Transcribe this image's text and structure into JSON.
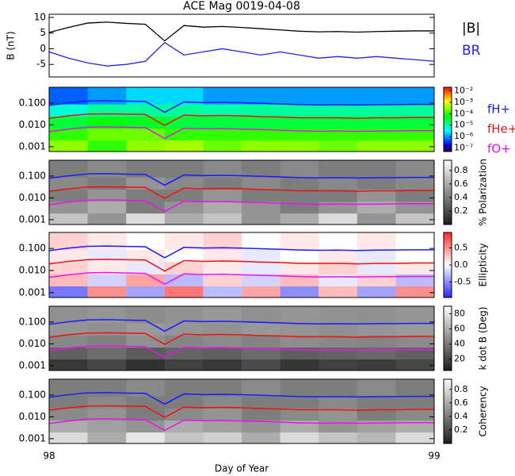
{
  "chart_data": [
    {
      "type": "line",
      "title": "ACE Mag 0019-04-08",
      "ylabel": "B (nT)",
      "ylim": [
        -9,
        11
      ],
      "yticks": [
        -5,
        0,
        5,
        10
      ],
      "x": [
        98,
        98.05,
        98.1,
        98.15,
        98.2,
        98.25,
        98.3,
        98.35,
        98.4,
        98.45,
        98.5,
        98.55,
        98.6,
        98.65,
        98.7,
        98.75,
        98.8,
        98.85,
        98.9,
        98.95,
        99
      ],
      "series": [
        {
          "name": "|B|",
          "color": "#000000",
          "values": [
            5.2,
            6.8,
            8.2,
            8.5,
            8.1,
            7.8,
            2.5,
            7.4,
            6.9,
            7.1,
            6.8,
            6.4,
            6.0,
            5.6,
            5.4,
            5.5,
            5.3,
            5.5,
            5.6,
            5.7,
            5.7
          ]
        },
        {
          "name": "BR",
          "color": "#2222ee",
          "values": [
            -1,
            -3,
            -4.5,
            -5.5,
            -5,
            -4,
            2,
            -2,
            -1,
            0,
            -1,
            -2,
            -1,
            -2,
            -3,
            -2.5,
            -3,
            -2.5,
            -3,
            -3.5,
            -4
          ]
        }
      ]
    },
    {
      "type": "heatmap",
      "colormap": "rainbow",
      "zlog": true,
      "zlim": [
        5e-08,
        0.02
      ],
      "zticks": [
        {
          "value": 1e-07,
          "label": "10⁻⁷"
        },
        {
          "value": 1e-06,
          "label": "10⁻⁶"
        },
        {
          "value": 1e-05,
          "label": "10⁻⁵"
        },
        {
          "value": 0.0001,
          "label": "10⁻⁴"
        },
        {
          "value": 0.001,
          "label": "10⁻³"
        },
        {
          "value": 0.01,
          "label": "10⁻²"
        }
      ],
      "ylog": true,
      "ylim": [
        0.0006,
        0.53
      ],
      "yticks": [
        0.001,
        {
          "value": 0.01,
          "label": "0.010"
        },
        {
          "value": 0.1,
          "label": "0.100"
        }
      ],
      "xbins": [
        98,
        98.1,
        98.2,
        98.3,
        98.4,
        98.5,
        98.6,
        98.7,
        98.8,
        98.9,
        99
      ],
      "ybins": [
        0.0006,
        0.002,
        0.007,
        0.025,
        0.09,
        0.53
      ],
      "z": [
        [
          0.0003,
          0.0001,
          0.0003,
          0.0004,
          0.0002,
          0.0003,
          0.0003,
          0.0002,
          0.0003,
          0.0003
        ],
        [
          0.0001,
          0.0002,
          0.0002,
          0.0001,
          0.0001,
          0.0001,
          0.0001,
          0.0001,
          0.0001,
          0.0001
        ],
        [
          3e-05,
          5e-05,
          4e-05,
          3e-05,
          3e-05,
          3e-05,
          3e-05,
          3e-05,
          3e-05,
          3e-05
        ],
        [
          5e-06,
          1e-05,
          1e-05,
          1e-05,
          8e-06,
          1e-05,
          1e-05,
          1e-05,
          1e-05,
          1e-05
        ],
        [
          5e-07,
          1e-06,
          2e-06,
          2e-06,
          1e-06,
          1e-06,
          1e-06,
          1e-06,
          1e-06,
          1e-06
        ]
      ],
      "series": [
        {
          "name": "fH+",
          "color": "#1a1aff",
          "values": [
            0.079,
            0.103,
            0.125,
            0.129,
            0.123,
            0.119,
            0.038,
            0.112,
            0.105,
            0.108,
            0.103,
            0.097,
            0.091,
            0.085,
            0.082,
            0.084,
            0.081,
            0.084,
            0.085,
            0.087,
            0.087
          ]
        },
        {
          "name": "fHe+",
          "color": "#ee1111",
          "values": [
            0.02,
            0.026,
            0.031,
            0.032,
            0.031,
            0.03,
            0.0095,
            0.028,
            0.026,
            0.027,
            0.026,
            0.024,
            0.023,
            0.021,
            0.021,
            0.021,
            0.02,
            0.021,
            0.021,
            0.022,
            0.022
          ]
        },
        {
          "name": "fO+",
          "color": "#ee11ee",
          "values": [
            0.0049,
            0.0064,
            0.0078,
            0.0081,
            0.0077,
            0.0074,
            0.0024,
            0.007,
            0.0066,
            0.0068,
            0.0064,
            0.0061,
            0.0057,
            0.0053,
            0.0051,
            0.0052,
            0.0051,
            0.0052,
            0.0053,
            0.0054,
            0.0054
          ]
        }
      ]
    },
    {
      "type": "heatmap",
      "colormap": "gray",
      "colorbar_label": "% Polarization",
      "zlim": [
        0,
        0.95
      ],
      "zticks": [
        0.2,
        0.4,
        0.6,
        0.8
      ],
      "ylog": true,
      "ylim": [
        0.0006,
        0.53
      ],
      "yticks": [
        0.001,
        {
          "value": 0.01,
          "label": "0.010"
        },
        {
          "value": 0.1,
          "label": "0.100"
        }
      ],
      "z": [
        [
          0.7,
          0.5,
          0.8,
          0.6,
          0.7,
          0.5,
          0.6,
          0.8,
          0.5,
          0.7
        ],
        [
          0.5,
          0.6,
          0.4,
          0.5,
          0.6,
          0.5,
          0.4,
          0.5,
          0.6,
          0.5
        ],
        [
          0.4,
          0.5,
          0.4,
          0.4,
          0.5,
          0.4,
          0.4,
          0.4,
          0.5,
          0.4
        ],
        [
          0.45,
          0.4,
          0.5,
          0.45,
          0.4,
          0.45,
          0.4,
          0.45,
          0.4,
          0.45
        ],
        [
          0.4,
          0.45,
          0.4,
          0.4,
          0.45,
          0.4,
          0.45,
          0.4,
          0.4,
          0.45
        ]
      ]
    },
    {
      "type": "heatmap",
      "colormap": "bwr",
      "colorbar_label": "Ellipticity",
      "zlim": [
        -0.95,
        0.95
      ],
      "zticks": [
        -0.5,
        {
          "value": 0,
          "label": "0.0"
        },
        0.5
      ],
      "ylog": true,
      "ylim": [
        0.0006,
        0.53
      ],
      "yticks": [
        0.001,
        {
          "value": 0.01,
          "label": "0.010"
        },
        {
          "value": 0.1,
          "label": "0.100"
        }
      ],
      "z": [
        [
          -0.6,
          0.5,
          -0.4,
          0.6,
          -0.3,
          0.4,
          -0.5,
          0.3,
          -0.4,
          0.5
        ],
        [
          0.3,
          -0.2,
          0.4,
          -0.3,
          0.2,
          -0.2,
          0.3,
          -0.1,
          0.2,
          -0.3
        ],
        [
          0.2,
          0.1,
          -0.1,
          0.2,
          0.1,
          -0.1,
          0.1,
          0.2,
          -0.1,
          0.1
        ],
        [
          0.1,
          -0.1,
          0.1,
          0.0,
          0.1,
          -0.1,
          0.0,
          0.1,
          -0.1,
          0.0
        ],
        [
          0.2,
          0.1,
          0.0,
          0.1,
          0.2,
          0.0,
          0.1,
          0.0,
          0.1,
          0.0
        ]
      ]
    },
    {
      "type": "heatmap",
      "colormap": "gray",
      "colorbar_label": "k dot B (Deg)",
      "zlim": [
        5,
        90
      ],
      "zticks": [
        20,
        40,
        60,
        80
      ],
      "ylog": true,
      "ylim": [
        0.0006,
        0.53
      ],
      "yticks": [
        0.001,
        {
          "value": 0.01,
          "label": "0.010"
        },
        {
          "value": 0.1,
          "label": "0.100"
        }
      ],
      "z": [
        [
          15,
          20,
          12,
          18,
          15,
          22,
          14,
          18,
          16,
          20
        ],
        [
          30,
          35,
          28,
          32,
          30,
          34,
          29,
          31,
          33,
          30
        ],
        [
          45,
          42,
          48,
          44,
          46,
          43,
          47,
          45,
          44,
          46
        ],
        [
          50,
          48,
          52,
          50,
          49,
          51,
          50,
          48,
          50,
          52
        ],
        [
          48,
          50,
          47,
          49,
          51,
          48,
          50,
          49,
          48,
          50
        ]
      ]
    },
    {
      "type": "heatmap",
      "colormap": "gray",
      "colorbar_label": "Coherency",
      "zlim": [
        0,
        0.95
      ],
      "zticks": [
        0.2,
        0.4,
        0.6,
        0.8
      ],
      "ylog": true,
      "ylim": [
        0.0006,
        0.53
      ],
      "yticks": [
        0.001,
        {
          "value": 0.01,
          "label": "0.010"
        },
        {
          "value": 0.1,
          "label": "0.100"
        }
      ],
      "xlabel": "Day of Year",
      "xlim": [
        98,
        99
      ],
      "xticks": [
        98,
        99
      ],
      "z": [
        [
          0.8,
          0.6,
          0.85,
          0.7,
          0.75,
          0.6,
          0.8,
          0.7,
          0.65,
          0.8
        ],
        [
          0.6,
          0.55,
          0.5,
          0.6,
          0.55,
          0.5,
          0.6,
          0.5,
          0.55,
          0.6
        ],
        [
          0.45,
          0.5,
          0.4,
          0.45,
          0.5,
          0.4,
          0.45,
          0.5,
          0.4,
          0.45
        ],
        [
          0.4,
          0.45,
          0.4,
          0.4,
          0.45,
          0.4,
          0.4,
          0.45,
          0.4,
          0.4
        ],
        [
          0.4,
          0.4,
          0.45,
          0.4,
          0.4,
          0.45,
          0.4,
          0.4,
          0.45,
          0.4
        ]
      ]
    }
  ]
}
